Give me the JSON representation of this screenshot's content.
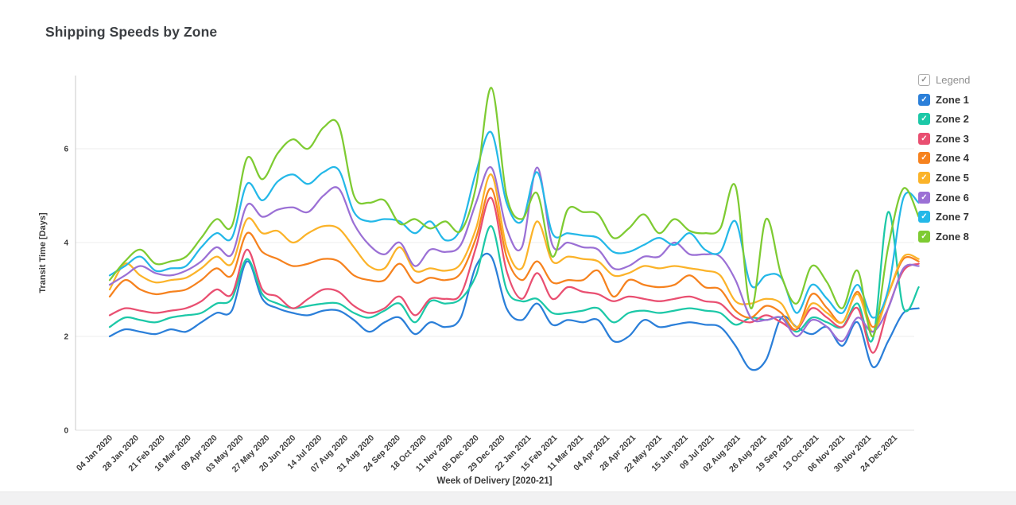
{
  "title": "Shipping Speeds by Zone",
  "legend": {
    "header_label": "Legend",
    "header_check": "✓",
    "item_check": "✓"
  },
  "axes": {
    "x_title": "Week of Delivery [2020-21]",
    "y_title": "Transit Time [Days]",
    "y_tick_labels": [
      "0",
      "2",
      "4",
      "6"
    ]
  },
  "colors": {
    "grid": "#ececec",
    "axis_line": "#c9c9c9",
    "baseline": "#e0e0e0",
    "tick_text": "#3c3c3c",
    "title_text": "#3b3e42"
  },
  "chart_data": {
    "type": "line",
    "title": "Shipping Speeds by Zone",
    "xlabel": "Week of Delivery [2020-21]",
    "ylabel": "Transit Time [Days]",
    "ylim": [
      0,
      7.5
    ],
    "yticks": [
      0,
      2,
      4,
      6
    ],
    "grid": true,
    "legend_position": "right",
    "x_unit": "one value per 2 weeks, from 04 Jan 2020 to early Jan 2022",
    "x_tick_labels": [
      "04 Jan 2020",
      "28 Jan 2020",
      "21 Feb 2020",
      "16 Mar 2020",
      "09 Apr 2020",
      "03 May 2020",
      "27 May 2020",
      "20 Jun 2020",
      "14 Jul 2020",
      "07 Aug 2020",
      "31 Aug 2020",
      "24 Sep 2020",
      "18 Oct 2020",
      "11 Nov 2020",
      "05 Dec 2020",
      "29 Dec 2020",
      "22 Jan 2021",
      "15 Feb 2021",
      "11 Mar 2021",
      "04 Apr 2021",
      "28 Apr 2021",
      "22 May 2021",
      "15 Jun 2021",
      "09 Jul 2021",
      "02 Aug 2021",
      "26 Aug 2021",
      "19 Sep 2021",
      "13 Oct 2021",
      "06 Nov 2021",
      "30 Nov 2021",
      "24 Dec 2021"
    ],
    "series": [
      {
        "name": "Zone 1",
        "color": "#2B7FD9",
        "values": [
          2.0,
          2.15,
          2.1,
          2.05,
          2.15,
          2.1,
          2.3,
          2.5,
          2.55,
          3.6,
          2.8,
          2.6,
          2.5,
          2.45,
          2.55,
          2.55,
          2.35,
          2.1,
          2.3,
          2.4,
          2.05,
          2.3,
          2.2,
          2.4,
          3.5,
          3.7,
          2.6,
          2.35,
          2.7,
          2.25,
          2.35,
          2.3,
          2.35,
          1.9,
          2.0,
          2.35,
          2.2,
          2.25,
          2.3,
          2.25,
          2.2,
          1.8,
          1.3,
          1.5,
          2.4,
          2.2,
          2.05,
          2.2,
          1.8,
          2.3,
          1.35,
          1.9,
          2.5,
          2.6
        ]
      },
      {
        "name": "Zone 2",
        "color": "#1CC8A7",
        "values": [
          2.2,
          2.4,
          2.35,
          2.3,
          2.4,
          2.45,
          2.5,
          2.7,
          2.8,
          3.65,
          2.9,
          2.7,
          2.6,
          2.65,
          2.7,
          2.7,
          2.5,
          2.4,
          2.55,
          2.7,
          2.3,
          2.75,
          2.7,
          2.8,
          3.3,
          4.35,
          3.0,
          2.75,
          2.8,
          2.5,
          2.5,
          2.55,
          2.6,
          2.3,
          2.5,
          2.55,
          2.5,
          2.55,
          2.6,
          2.55,
          2.5,
          2.25,
          2.4,
          2.35,
          2.4,
          2.1,
          2.4,
          2.3,
          2.2,
          2.7,
          1.95,
          4.65,
          2.6,
          3.05
        ]
      },
      {
        "name": "Zone 3",
        "color": "#E94F71",
        "values": [
          2.45,
          2.6,
          2.55,
          2.5,
          2.55,
          2.6,
          2.75,
          3.0,
          2.9,
          3.85,
          3.0,
          2.85,
          2.6,
          2.8,
          3.0,
          2.95,
          2.65,
          2.5,
          2.6,
          2.85,
          2.45,
          2.8,
          2.8,
          2.9,
          3.9,
          4.95,
          3.4,
          2.8,
          3.35,
          2.8,
          3.05,
          2.95,
          2.9,
          2.75,
          2.85,
          2.8,
          2.75,
          2.8,
          2.85,
          2.75,
          2.7,
          2.4,
          2.3,
          2.45,
          2.3,
          2.15,
          2.6,
          2.4,
          2.2,
          2.6,
          1.65,
          2.6,
          3.4,
          3.55
        ]
      },
      {
        "name": "Zone 4",
        "color": "#F6821E",
        "values": [
          2.85,
          3.2,
          3.0,
          2.9,
          2.95,
          3.0,
          3.2,
          3.45,
          3.3,
          4.2,
          3.8,
          3.65,
          3.5,
          3.55,
          3.65,
          3.6,
          3.3,
          3.2,
          3.2,
          3.55,
          3.15,
          3.25,
          3.2,
          3.35,
          4.1,
          5.15,
          3.7,
          3.2,
          3.6,
          3.15,
          3.2,
          3.2,
          3.4,
          2.85,
          3.2,
          3.1,
          3.05,
          3.1,
          3.3,
          3.05,
          3.0,
          2.55,
          2.4,
          2.65,
          2.5,
          2.15,
          2.9,
          2.6,
          2.3,
          2.95,
          2.2,
          2.9,
          3.65,
          3.6
        ]
      },
      {
        "name": "Zone 5",
        "color": "#FBB329",
        "values": [
          3.0,
          3.55,
          3.3,
          3.15,
          3.2,
          3.25,
          3.45,
          3.7,
          3.55,
          4.5,
          4.2,
          4.25,
          4.0,
          4.2,
          4.35,
          4.3,
          3.9,
          3.5,
          3.45,
          3.9,
          3.4,
          3.45,
          3.4,
          3.55,
          4.3,
          5.45,
          3.9,
          3.45,
          4.45,
          3.6,
          3.7,
          3.65,
          3.6,
          3.3,
          3.35,
          3.5,
          3.45,
          3.5,
          3.45,
          3.4,
          3.3,
          2.75,
          2.7,
          2.8,
          2.7,
          2.2,
          2.7,
          2.5,
          2.3,
          2.9,
          2.1,
          2.9,
          3.7,
          3.65
        ]
      },
      {
        "name": "Zone 6",
        "color": "#9B70D5",
        "values": [
          3.1,
          3.3,
          3.5,
          3.35,
          3.3,
          3.4,
          3.6,
          3.9,
          3.75,
          4.8,
          4.55,
          4.7,
          4.75,
          4.65,
          5.0,
          5.15,
          4.4,
          3.95,
          3.75,
          4.0,
          3.5,
          3.85,
          3.8,
          3.95,
          4.85,
          5.6,
          4.3,
          3.9,
          5.6,
          3.95,
          4.0,
          3.9,
          3.85,
          3.45,
          3.5,
          3.7,
          3.7,
          4.0,
          3.75,
          3.75,
          3.7,
          3.2,
          2.4,
          2.35,
          2.4,
          2.0,
          2.35,
          2.2,
          1.9,
          2.4,
          2.1,
          2.6,
          3.45,
          3.5
        ]
      },
      {
        "name": "Zone 7",
        "color": "#24B8E8",
        "values": [
          3.3,
          3.5,
          3.7,
          3.4,
          3.45,
          3.5,
          3.9,
          4.2,
          4.1,
          5.25,
          4.9,
          5.3,
          5.45,
          5.25,
          5.5,
          5.55,
          4.65,
          4.45,
          4.5,
          4.45,
          4.2,
          4.45,
          4.05,
          4.3,
          5.5,
          6.35,
          4.85,
          4.45,
          5.5,
          4.2,
          4.2,
          4.15,
          4.1,
          3.8,
          3.8,
          3.95,
          4.1,
          3.95,
          4.2,
          3.85,
          3.8,
          4.45,
          3.1,
          3.3,
          3.25,
          2.5,
          3.1,
          2.8,
          2.5,
          3.1,
          2.4,
          3.0,
          4.95,
          4.85
        ]
      },
      {
        "name": "Zone 8",
        "color": "#7ECB32",
        "values": [
          3.2,
          3.6,
          3.85,
          3.55,
          3.6,
          3.7,
          4.1,
          4.5,
          4.35,
          5.8,
          5.35,
          5.9,
          6.2,
          6.0,
          6.45,
          6.5,
          5.0,
          4.85,
          4.9,
          4.4,
          4.5,
          4.3,
          4.45,
          4.25,
          5.2,
          7.3,
          5.0,
          4.5,
          5.05,
          3.7,
          4.7,
          4.65,
          4.6,
          4.1,
          4.3,
          4.6,
          4.2,
          4.5,
          4.25,
          4.2,
          4.3,
          5.2,
          2.6,
          4.5,
          3.3,
          2.7,
          3.5,
          3.15,
          2.6,
          3.4,
          2.0,
          3.9,
          5.15,
          4.55
        ]
      }
    ]
  }
}
